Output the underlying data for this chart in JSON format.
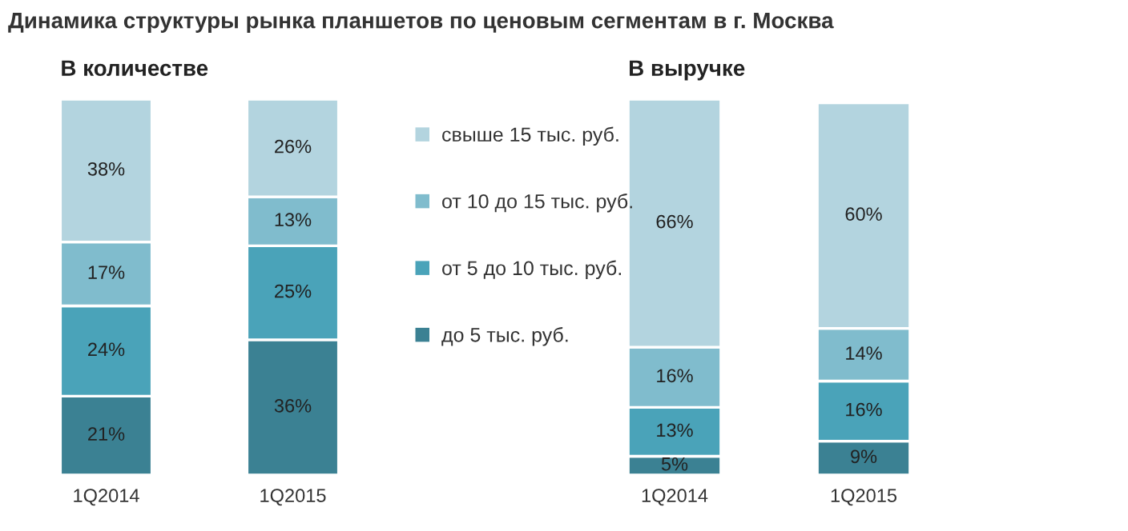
{
  "chart_data": [
    {
      "type": "bar",
      "stacked": true,
      "title": "Динамика структуры рынка планшетов по ценовым сегментам в г. Москва",
      "subtitle": "В количестве",
      "categories": [
        "1Q2014",
        "1Q2015"
      ],
      "legend": "right",
      "series": [
        {
          "name": "до 5 тыс. руб.",
          "color": "#3b8193",
          "values": [
            21,
            36
          ],
          "value_labels": [
            "21%",
            "36%"
          ]
        },
        {
          "name": "от 5 до 10 тыс. руб.",
          "color": "#4aa3b9",
          "values": [
            24,
            25
          ],
          "value_labels": [
            "24%",
            "25%"
          ]
        },
        {
          "name": "от 10 до 15 тыс. руб.",
          "color": "#80bccd",
          "values": [
            17,
            13
          ],
          "value_labels": [
            "17%",
            "13%"
          ]
        },
        {
          "name": "свыше 15 тыс. руб.",
          "color": "#b3d4df",
          "values": [
            38,
            26
          ],
          "value_labels": [
            "38%",
            "26%"
          ]
        }
      ]
    },
    {
      "type": "bar",
      "stacked": true,
      "subtitle": "В выручке",
      "categories": [
        "1Q2014",
        "1Q2015"
      ],
      "series": [
        {
          "color": "#3b8193",
          "values": [
            5,
            9
          ],
          "value_labels": [
            "5%",
            "9%"
          ]
        },
        {
          "color": "#4aa3b9",
          "values": [
            13,
            16
          ],
          "value_labels": [
            "13%",
            "16%"
          ]
        },
        {
          "color": "#80bccd",
          "values": [
            16,
            14
          ],
          "value_labels": [
            "16%",
            "14%"
          ]
        },
        {
          "color": "#b3d4df",
          "values": [
            66,
            60
          ],
          "value_labels": [
            "66%",
            "60%"
          ]
        }
      ]
    }
  ]
}
